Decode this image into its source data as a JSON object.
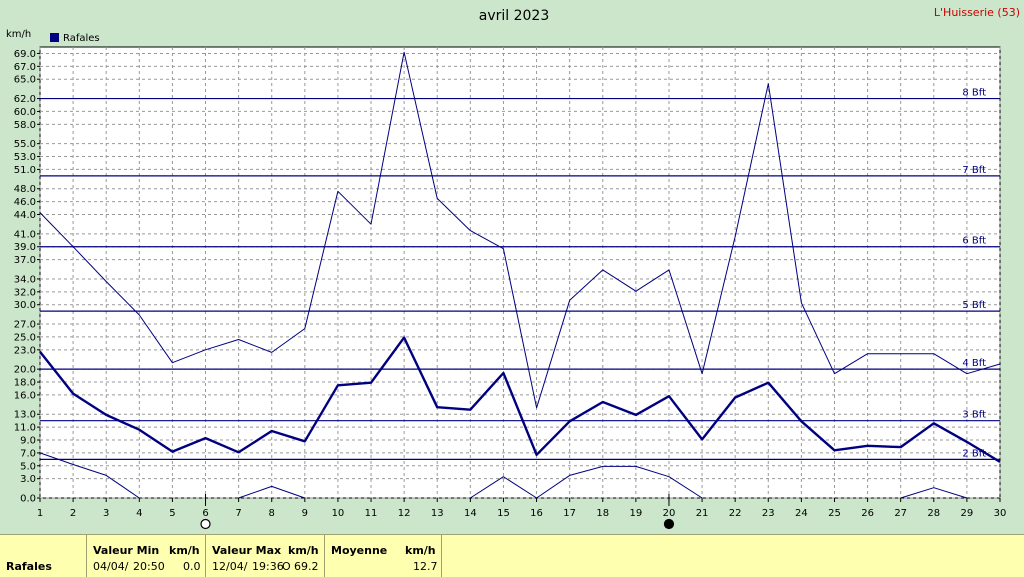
{
  "chart_data": {
    "type": "line",
    "title": "avril 2023",
    "station": "L'Huisserie (53)",
    "ylabel": "km/h",
    "legend": [
      "Rafales"
    ],
    "legend_placement": "top-left",
    "grid": true,
    "xlim": [
      1,
      30
    ],
    "ylim": [
      0,
      70
    ],
    "x_ticks": [
      "1",
      "2",
      "3",
      "4",
      "5",
      "6",
      "7",
      "8",
      "9",
      "10",
      "11",
      "12",
      "13",
      "14",
      "15",
      "16",
      "17",
      "18",
      "19",
      "20",
      "21",
      "22",
      "23",
      "24",
      "25",
      "26",
      "27",
      "28",
      "29",
      "30"
    ],
    "y_ticks": [
      "0.0",
      "3.0",
      "5.0",
      "7.0",
      "9.0",
      "11.0",
      "13.0",
      "16.0",
      "18.0",
      "20.0",
      "23.0",
      "25.0",
      "27.0",
      "30.0",
      "32.0",
      "34.0",
      "37.0",
      "39.0",
      "41.0",
      "44.0",
      "46.0",
      "48.0",
      "51.0",
      "53.0",
      "55.0",
      "58.0",
      "60.0",
      "62.0",
      "65.0",
      "67.0",
      "69.0"
    ],
    "beaufort": [
      {
        "label": "2 Bft",
        "value": 6.0
      },
      {
        "label": "3 Bft",
        "value": 12.0
      },
      {
        "label": "4 Bft",
        "value": 20.0
      },
      {
        "label": "5 Bft",
        "value": 29.0
      },
      {
        "label": "6 Bft",
        "value": 39.0
      },
      {
        "label": "7 Bft",
        "value": 50.0
      },
      {
        "label": "8 Bft",
        "value": 62.0
      }
    ],
    "moon_phases": [
      {
        "day": 6,
        "phase": "full"
      },
      {
        "day": 20,
        "phase": "new"
      }
    ],
    "x": [
      1,
      2,
      3,
      4,
      5,
      6,
      7,
      8,
      9,
      10,
      11,
      12,
      13,
      14,
      15,
      16,
      17,
      18,
      19,
      20,
      21,
      22,
      23,
      24,
      25,
      26,
      27,
      28,
      29,
      30
    ],
    "series": [
      {
        "name": "Rafales",
        "role": "max",
        "values": [
          44.3,
          39.0,
          33.6,
          28.4,
          21.0,
          23.0,
          24.6,
          22.6,
          26.3,
          47.6,
          42.5,
          69.2,
          46.5,
          41.5,
          38.7,
          14.0,
          30.7,
          35.4,
          32.1,
          35.4,
          19.3,
          40.6,
          64.3,
          30.3,
          19.3,
          22.4,
          22.4,
          22.4,
          19.3,
          20.8
        ]
      },
      {
        "name": "Rafales",
        "role": "mean",
        "values": [
          22.7,
          16.2,
          12.9,
          10.6,
          7.2,
          9.3,
          7.1,
          10.4,
          8.8,
          17.5,
          17.9,
          24.9,
          14.1,
          13.7,
          19.4,
          6.7,
          11.9,
          14.9,
          12.9,
          15.8,
          9.1,
          15.6,
          17.9,
          11.9,
          7.4,
          8.1,
          7.9,
          11.6,
          8.7,
          5.6
        ]
      },
      {
        "name": "Rafales",
        "role": "min",
        "values": [
          7.0,
          5.2,
          3.5,
          0.0,
          null,
          null,
          0.0,
          1.8,
          0.0,
          null,
          null,
          null,
          null,
          0.0,
          3.3,
          0.0,
          3.5,
          4.9,
          4.9,
          3.3,
          0.0,
          null,
          null,
          null,
          null,
          null,
          0.0,
          1.6,
          0.0,
          null
        ]
      }
    ]
  },
  "footer": {
    "row_label": "Rafales",
    "min_header": "Valeur Min",
    "min_unit": "km/h",
    "min_date": "04/04/",
    "min_time": "20:50",
    "min_value": "0.0",
    "max_header": "Valeur Max",
    "max_unit": "km/h",
    "max_date": "12/04/",
    "max_time": "19:36",
    "max_value": "69.2",
    "max_marker": "O",
    "mean_header": "Moyenne",
    "mean_unit": "km/h",
    "mean_value": "12.7"
  },
  "colors": {
    "background": "#cce6cc",
    "plot_background": "#ffffff",
    "series": "#000080",
    "station": "#cc0000",
    "grid": "#999999",
    "footer": "#ffffb0"
  }
}
